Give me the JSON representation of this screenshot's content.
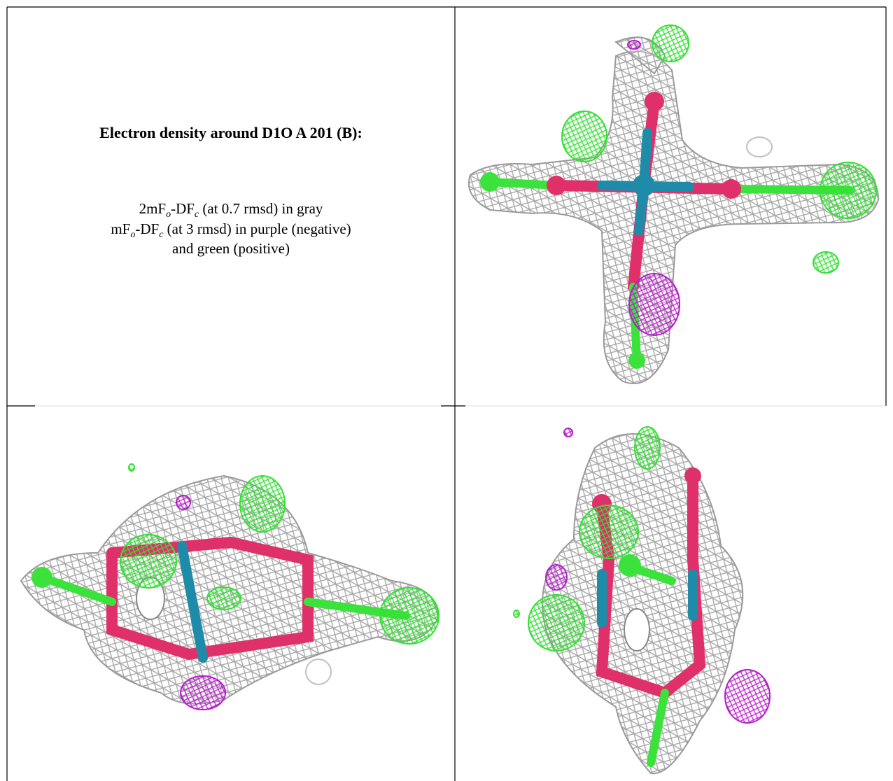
{
  "caption": {
    "title": "Electron density around D1O A 201 (B):",
    "lines": [
      [
        "2mF",
        "o",
        "-DF",
        "c",
        " (at 0.7 rmsd) in gray"
      ],
      [
        "mF",
        "o",
        "-DF",
        "c",
        " (at 3 rmsd) in purple (negative)"
      ],
      [
        "and green (positive)"
      ]
    ]
  }
}
